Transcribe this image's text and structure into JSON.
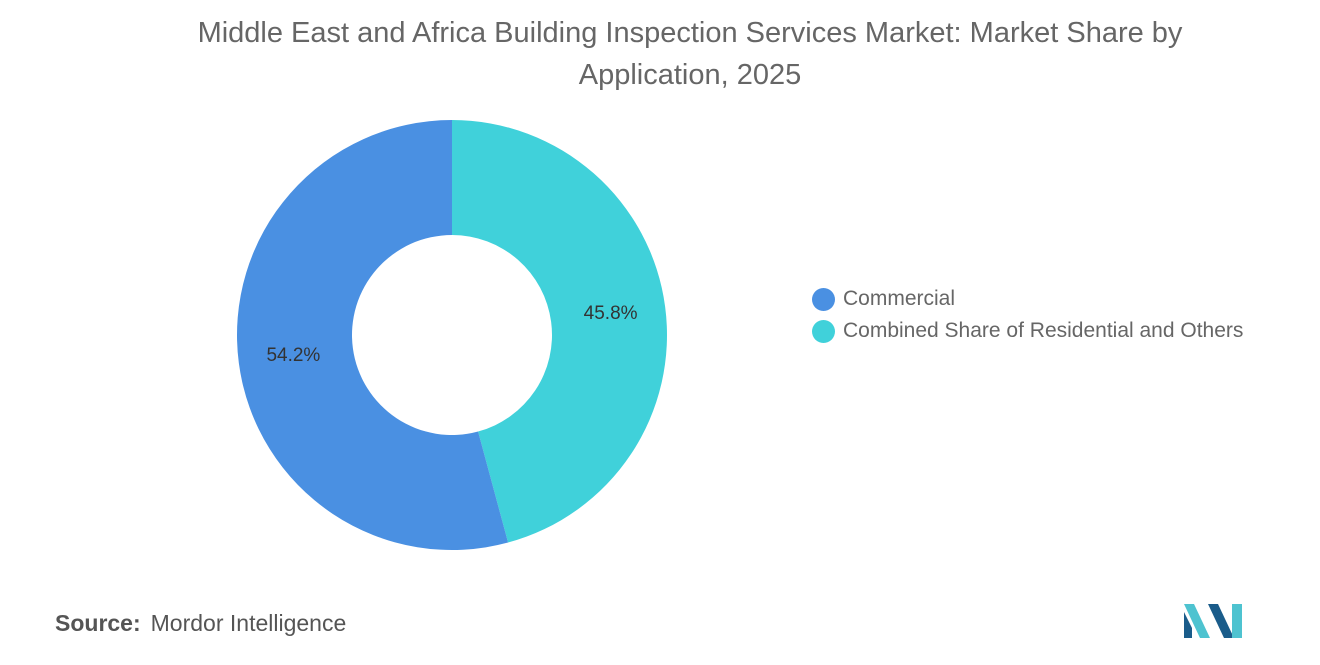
{
  "chart_data": {
    "type": "pie",
    "title": "Middle East and Africa Building Inspection Services Market: Market Share by Application, 2025",
    "donut": true,
    "series": [
      {
        "name": "Combined Share of Residential and Others",
        "value": 45.8,
        "label": "45.8%",
        "color": "#40d1da"
      },
      {
        "name": "Commercial",
        "value": 54.2,
        "label": "54.2%",
        "color": "#4a90e2"
      }
    ],
    "legend": {
      "placement": "right",
      "items": [
        {
          "label": "Commercial",
          "color": "#4a90e2"
        },
        {
          "label": "Combined Share of Residential and Others",
          "color": "#40d1da"
        }
      ]
    }
  },
  "footer": {
    "source_label": "Source:",
    "source_value": "Mordor Intelligence"
  },
  "logo": {
    "icon": "mordor-intelligence-logo-icon",
    "colors": [
      "#1a5c8a",
      "#4ec3d0"
    ]
  }
}
